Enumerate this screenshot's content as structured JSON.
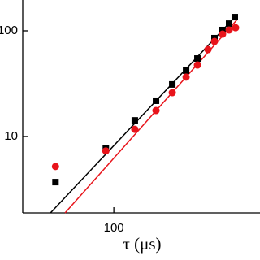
{
  "chart_data": {
    "type": "scatter",
    "x_label": "τ (μs)",
    "log_x": true,
    "log_y": true,
    "xlim": [
      13.7,
      2426
    ],
    "ylim": [
      1.89,
      196
    ],
    "xticks": [
      100
    ],
    "yticks": [
      10,
      100
    ],
    "series": [
      {
        "color": "#000000",
        "marker": "square",
        "x": [
          28,
          84,
          158,
          251,
          358,
          484,
          620,
          899,
          1073,
          1237,
          1400
        ],
        "values": [
          3.7,
          7.7,
          14.2,
          21.8,
          31.1,
          42.0,
          54.7,
          85.3,
          101.8,
          117,
          135
        ]
      },
      {
        "color": "#e8141b",
        "marker": "circle",
        "x": [
          28,
          84,
          158,
          251,
          358,
          484,
          620,
          780,
          899,
          1073,
          1237,
          1425
        ],
        "values": [
          5.2,
          7.3,
          11.7,
          17.6,
          26.0,
          36.5,
          47.5,
          66.5,
          79.4,
          93.1,
          101.8,
          107
        ]
      }
    ],
    "fits": [
      {
        "color": "#000000",
        "x": [
          25.1,
          1476
        ],
        "values": [
          1.89,
          142.5
        ]
      },
      {
        "color": "#e8141b",
        "x": [
          34.5,
          1476
        ],
        "values": [
          1.89,
          128
        ]
      }
    ]
  }
}
